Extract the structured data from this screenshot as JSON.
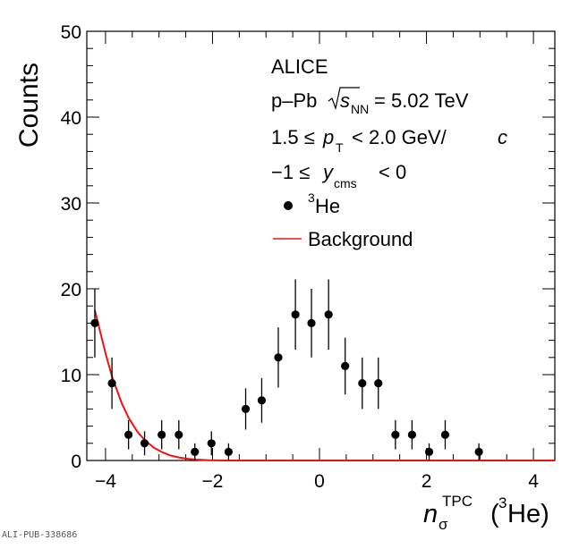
{
  "chart_data": {
    "type": "scatter",
    "xlabel": "n_σ^TPC (3He)",
    "xlabel_parts": {
      "n": "n",
      "sub": "σ",
      "sup": "TPC",
      "open": "(",
      "iso": "3",
      "el": "He)"
    },
    "ylabel": "Counts",
    "xlim": [
      -4.35,
      4.4
    ],
    "ylim": [
      0,
      50
    ],
    "x_ticks": [
      -4,
      -2,
      0,
      2,
      4
    ],
    "x_tick_labels": [
      "−4",
      "−2",
      "0",
      "2",
      "4"
    ],
    "y_ticks": [
      0,
      10,
      20,
      30,
      40,
      50
    ],
    "y_tick_labels": [
      "0",
      "10",
      "20",
      "30",
      "40",
      "50"
    ],
    "grid": false,
    "legend_placement": "top-center",
    "annotations": {
      "experiment": "ALICE",
      "system": "p–Pb",
      "energy_s": "s",
      "energy_sub": "NN",
      "energy_value": "= 5.02 TeV",
      "pt_left": "1.5 ≤",
      "pt_p": "p",
      "pt_sub": "T",
      "pt_right": "< 2.0 GeV/",
      "pt_c": "c",
      "y_left": "−1 ≤",
      "y_y": "y",
      "y_sub": "cms",
      "y_right": "< 0"
    },
    "series": [
      {
        "name": "3He",
        "legend_sup": "3",
        "legend_text": "He",
        "type": "points",
        "color": "#000000",
        "x": [
          -4.2,
          -3.88,
          -3.57,
          -3.27,
          -2.95,
          -2.63,
          -2.33,
          -2.02,
          -1.7,
          -1.38,
          -1.08,
          -0.77,
          -0.45,
          -0.15,
          0.17,
          0.48,
          0.8,
          1.1,
          1.42,
          1.73,
          2.05,
          2.35,
          2.98
        ],
        "y": [
          16,
          9,
          3,
          2,
          3,
          3,
          1,
          2,
          1,
          6,
          7,
          12,
          17,
          16,
          17,
          11,
          9,
          9,
          3,
          3,
          1,
          3,
          1
        ],
        "yerr": [
          4,
          3,
          1.7,
          1.4,
          1.7,
          1.7,
          1,
          1.4,
          1,
          2.4,
          2.6,
          3.5,
          4.1,
          4,
          4.1,
          3.3,
          3,
          3,
          1.7,
          1.7,
          1,
          1.7,
          1
        ]
      },
      {
        "name": "Background",
        "type": "line",
        "color": "#ee1111",
        "x": [
          -4.2,
          -4.0,
          -3.88,
          -3.7,
          -3.57,
          -3.4,
          -3.27,
          -3.1,
          -2.95,
          -2.8,
          -2.63,
          -2.45,
          -2.3,
          -2.1,
          -1.9,
          -1.6,
          -1.0,
          0,
          1,
          2,
          3,
          4,
          4.4
        ],
        "y": [
          17.5,
          12.5,
          9.8,
          6.7,
          5.0,
          3.3,
          2.4,
          1.5,
          1.0,
          0.6,
          0.35,
          0.18,
          0.1,
          0.04,
          0.01,
          0,
          0,
          0,
          0,
          0,
          0,
          0,
          0
        ]
      }
    ]
  },
  "footer": "ALI-PUB-338686"
}
